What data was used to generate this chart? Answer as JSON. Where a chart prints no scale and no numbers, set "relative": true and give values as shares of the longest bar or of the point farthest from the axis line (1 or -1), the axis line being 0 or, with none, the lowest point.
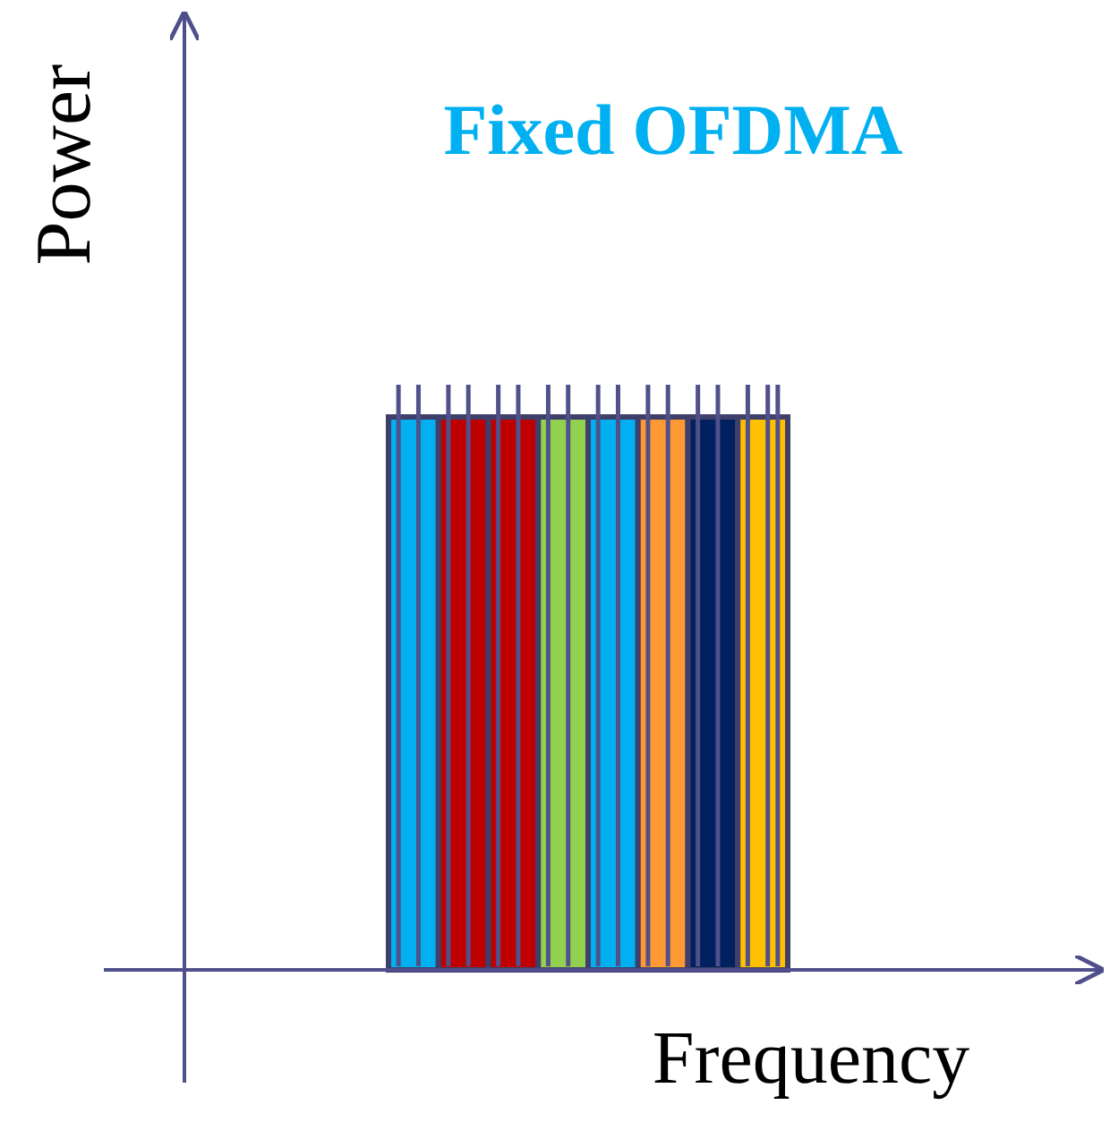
{
  "chart_data": {
    "type": "bar",
    "title": "Fixed OFDMA",
    "xlabel": "Frequency",
    "ylabel": "Power",
    "relative": true,
    "categories": [
      null,
      null,
      null,
      null,
      null,
      null,
      null,
      null
    ],
    "values": [
      1,
      1,
      1,
      1,
      1,
      1,
      1,
      1
    ],
    "colors": [
      "#00b0f0",
      "#c00000",
      "#c00000",
      "#92d050",
      "#00b0f0",
      "#ff9933",
      "#002060",
      "#ffc000"
    ]
  }
}
